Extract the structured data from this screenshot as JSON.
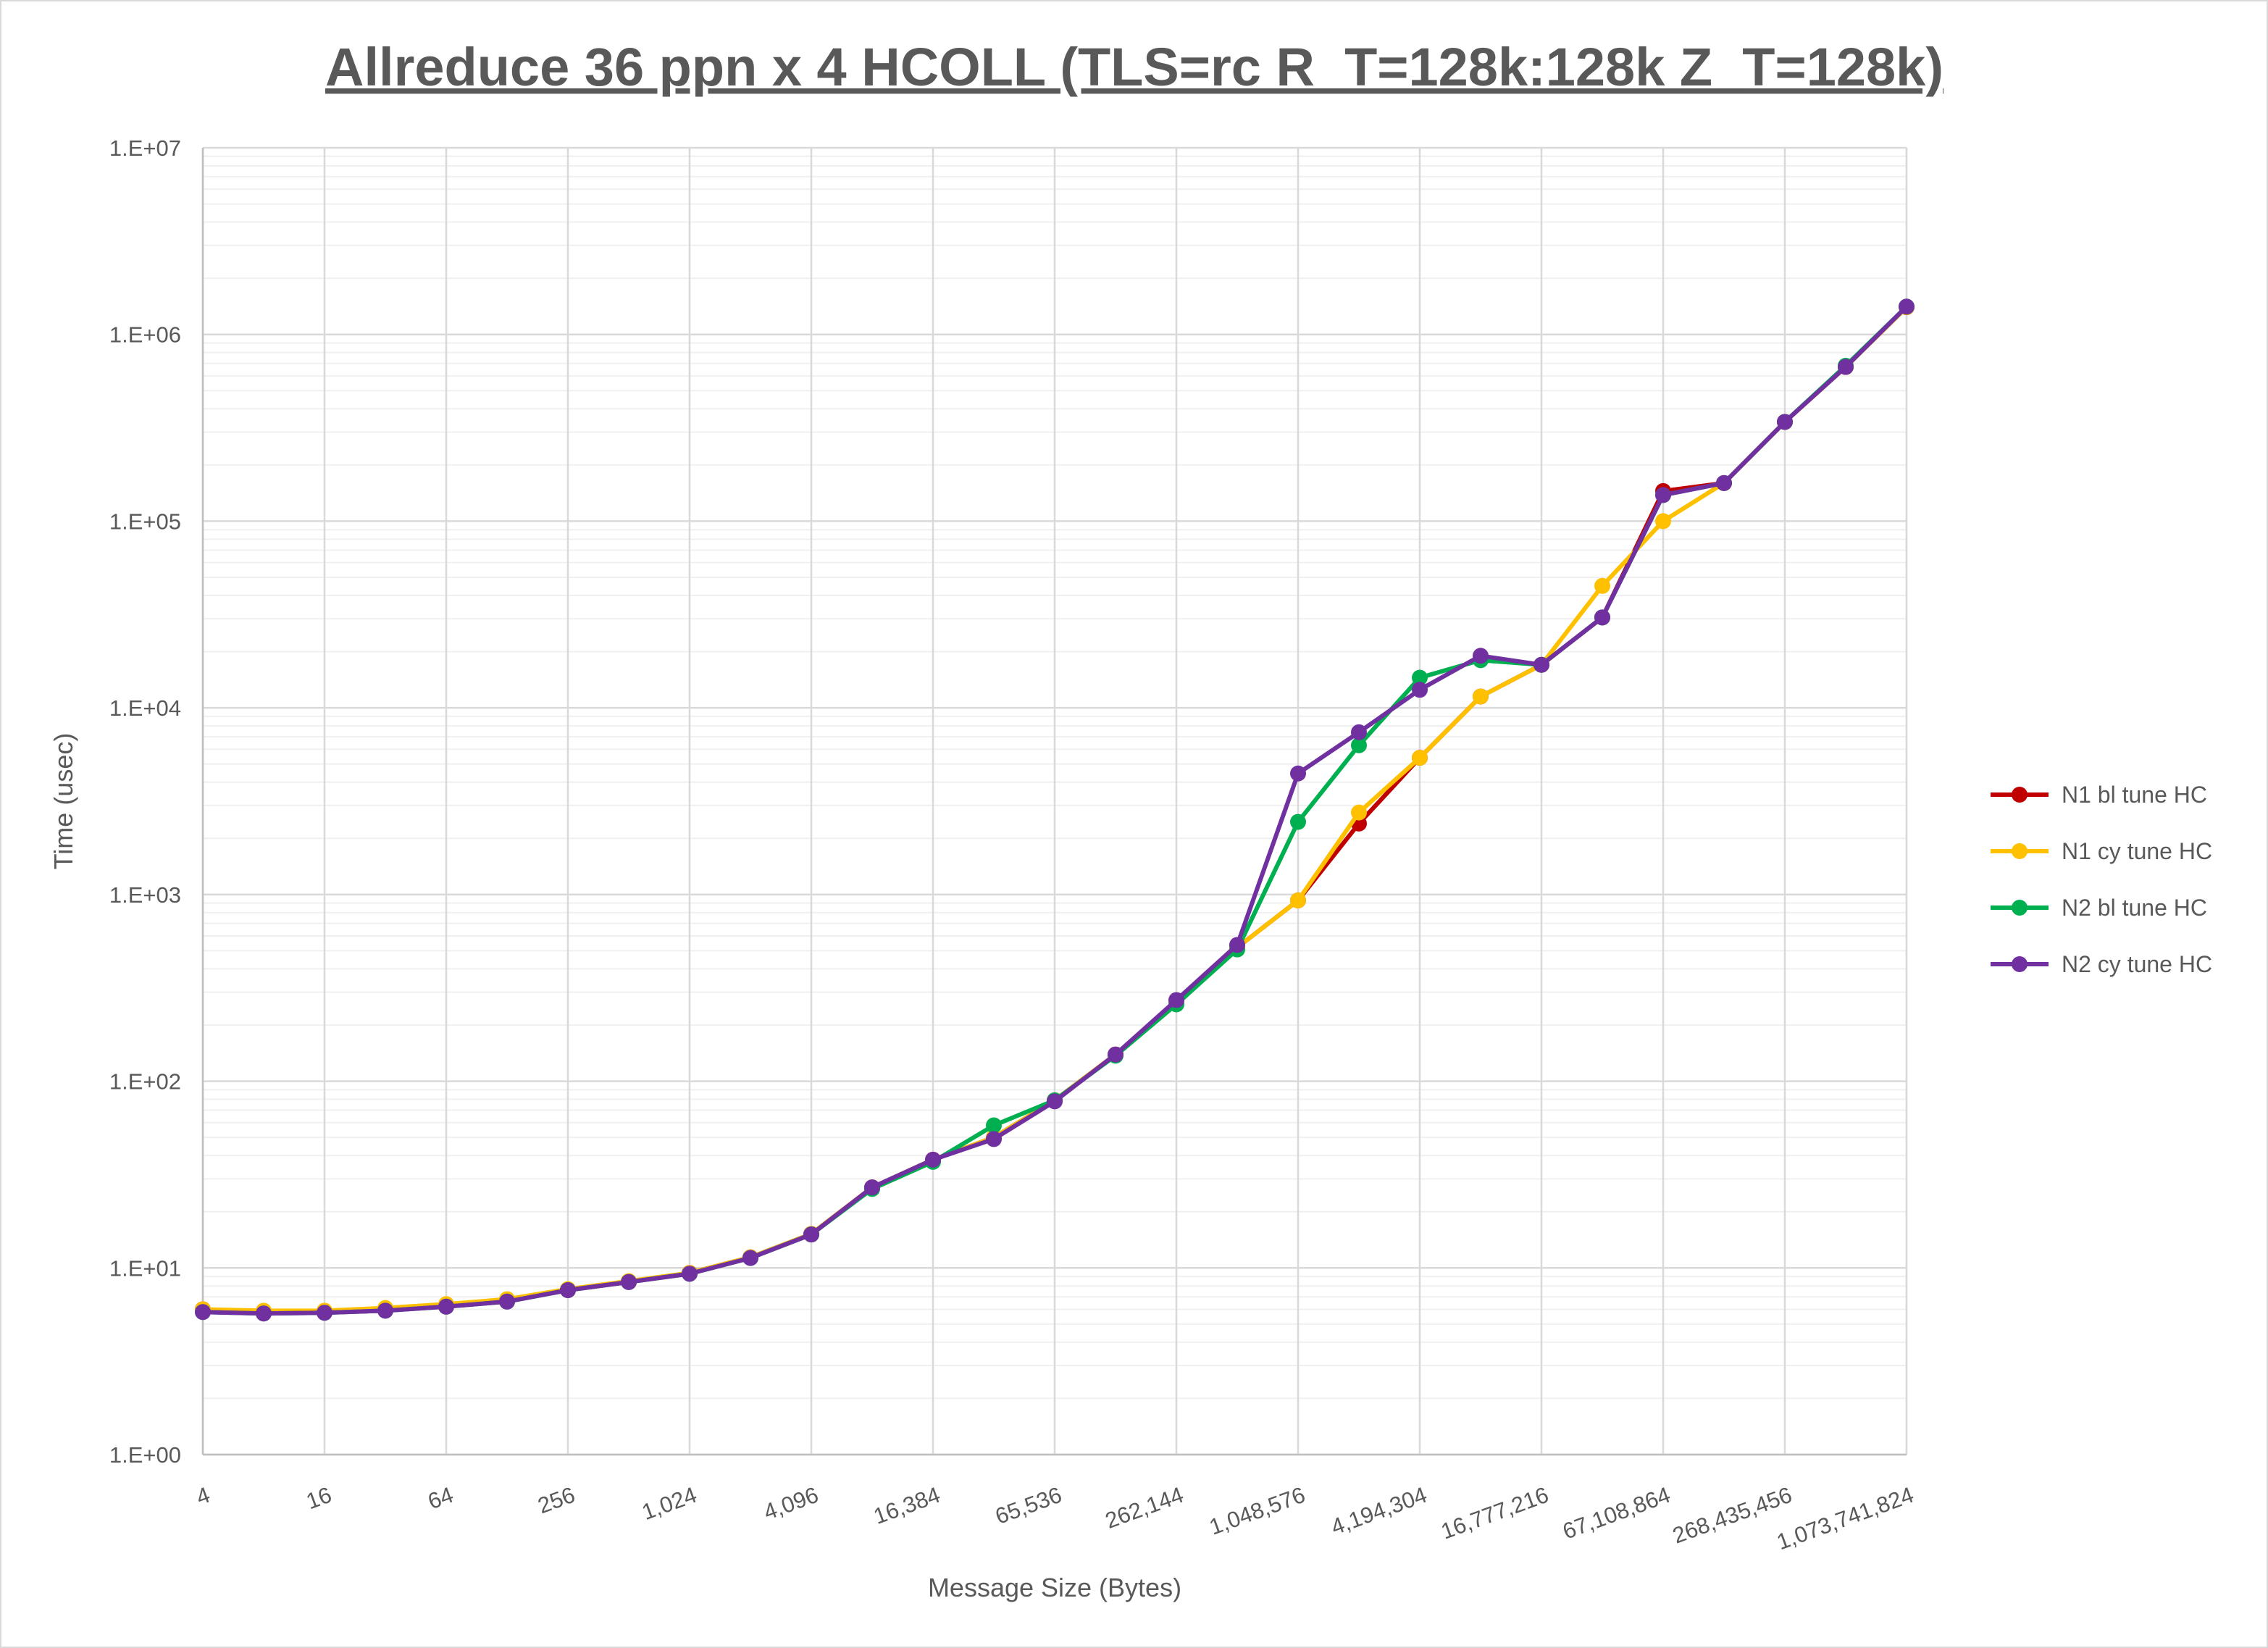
{
  "chart_data": {
    "type": "line",
    "title": "Allreduce 36 ppn x 4 HCOLL (TLS=rc R_T=128k:128k Z_T=128k)",
    "xlabel": "Message Size (Bytes)",
    "ylabel": "Time (usec)",
    "x_scale": "log2",
    "y_scale": "log10",
    "ylim": [
      1,
      10000000
    ],
    "grid": true,
    "legend_position": "right",
    "x": [
      4,
      8,
      16,
      32,
      64,
      128,
      256,
      512,
      1024,
      2048,
      4096,
      8192,
      16384,
      32768,
      65536,
      131072,
      262144,
      524288,
      1048576,
      2097152,
      4194304,
      8388608,
      16777216,
      33554432,
      67108864,
      134217728,
      268435456,
      536870912,
      1073741824
    ],
    "x_tick_labels": [
      "4",
      "16",
      "64",
      "256",
      "1,024",
      "4,096",
      "16,384",
      "65,536",
      "262,144",
      "1,048,576",
      "4,194,304",
      "16,777,216",
      "67,108,864",
      "268,435,456",
      "1,073,741,824"
    ],
    "y_tick_labels": [
      "1.E+00",
      "1.E+01",
      "1.E+02",
      "1.E+03",
      "1.E+04",
      "1.E+05",
      "1.E+06",
      "1.E+07"
    ],
    "series": [
      {
        "name": "N1 bl tune HC",
        "color": "#c00000",
        "values": [
          6.0,
          5.8,
          5.8,
          6.0,
          6.3,
          6.7,
          7.6,
          8.4,
          9.4,
          11.4,
          15.2,
          27,
          38,
          50,
          79,
          139,
          265,
          520,
          930,
          2400,
          5400,
          11500,
          17000,
          30500,
          145000,
          160000,
          340000,
          670000,
          1400000
        ]
      },
      {
        "name": "N1 cy tune HC",
        "color": "#ffc000",
        "values": [
          6.0,
          5.9,
          5.9,
          6.1,
          6.4,
          6.8,
          7.7,
          8.5,
          9.4,
          11.4,
          15.2,
          27,
          38,
          50,
          79,
          139,
          265,
          520,
          930,
          2750,
          5400,
          11500,
          17000,
          45000,
          100000,
          160000,
          340000,
          670000,
          1400000
        ]
      },
      {
        "name": "N2 bl tune HC",
        "color": "#00b050",
        "values": [
          5.8,
          5.7,
          5.75,
          5.9,
          6.2,
          6.6,
          7.6,
          8.4,
          9.3,
          11.3,
          15.1,
          26.5,
          37,
          58,
          79,
          137,
          258,
          508,
          2450,
          6300,
          14500,
          18000,
          17000,
          30500,
          138000,
          160000,
          340000,
          680000,
          1410000
        ]
      },
      {
        "name": "N2 cy tune HC",
        "color": "#7030a0",
        "values": [
          5.8,
          5.7,
          5.75,
          5.9,
          6.2,
          6.6,
          7.6,
          8.4,
          9.3,
          11.3,
          15.1,
          27,
          38,
          49,
          78,
          139,
          272,
          537,
          4450,
          7400,
          12500,
          19000,
          17000,
          30500,
          138000,
          160000,
          340000,
          670000,
          1410000
        ]
      }
    ]
  }
}
